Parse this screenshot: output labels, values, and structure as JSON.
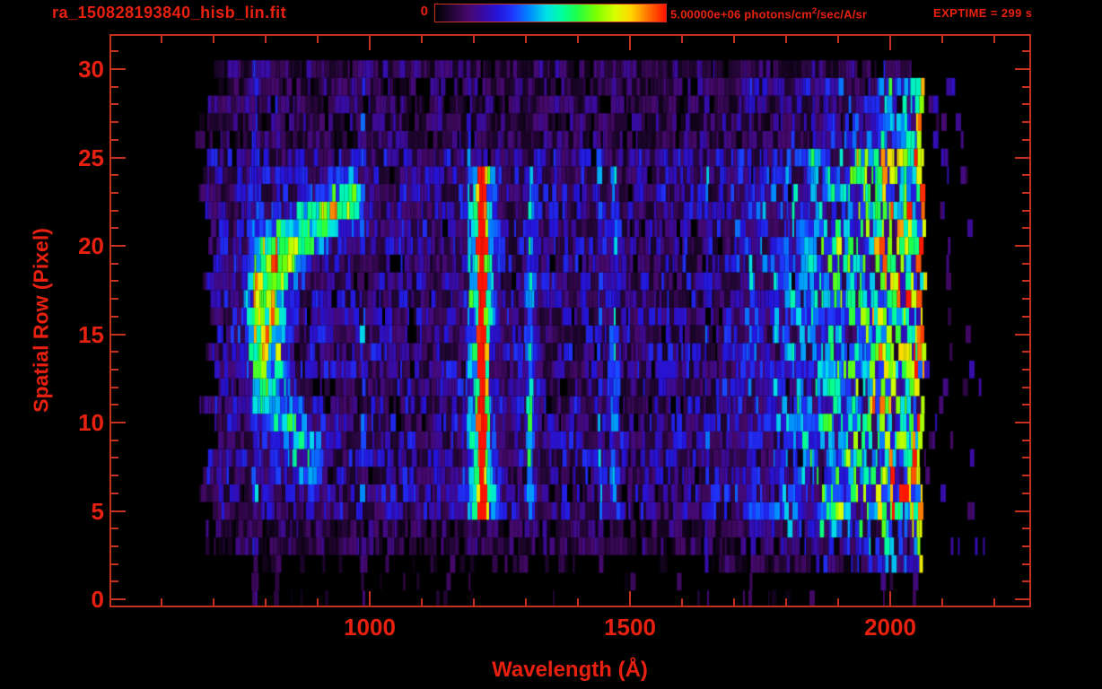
{
  "window": {
    "title_filename": "ra_150828193840_hisb_lin.fit"
  },
  "header": {
    "colorbar": {
      "min_label": "0",
      "max_value": "5.00000e+06",
      "units_prefix": " photons/cm",
      "units_sup": "2",
      "units_suffix": "/sec/A/sr"
    },
    "exptime_label": "EXPTIME = 299 s"
  },
  "colors": {
    "background": "#000000",
    "text": "#e8200f",
    "line": "#c5311d"
  },
  "chart_data": {
    "type": "heatmap",
    "title": "ra_150828193840_hisb_lin.fit",
    "xlabel": "Wavelength (Å)",
    "ylabel": "Spatial Row (Pixel)",
    "x_range_angstrom": [
      500,
      2270
    ],
    "y_range_rows": [
      -0.4,
      32
    ],
    "x_ticks": [
      1000,
      1500,
      2000
    ],
    "x_minor_tick_step": 100,
    "x_minor_tick_range": [
      600,
      2200
    ],
    "y_ticks": [
      0,
      5,
      10,
      15,
      20,
      25,
      30
    ],
    "y_minor_tick_step": 1,
    "y_minor_tick_range": [
      0,
      31
    ],
    "color_scale": {
      "min": 0,
      "max": 5000000,
      "max_label": "5.00000e+06",
      "units": "photons/cm^2/sec/A/sr"
    },
    "exposure_time_s": 299,
    "grid": false,
    "legend_position": "top-colorbar",
    "colormap_stops": [
      [
        0.0,
        "#000000"
      ],
      [
        0.07,
        "#230636"
      ],
      [
        0.14,
        "#46096b"
      ],
      [
        0.2,
        "#3a0b9e"
      ],
      [
        0.27,
        "#2414d8"
      ],
      [
        0.34,
        "#1e3cff"
      ],
      [
        0.41,
        "#008cff"
      ],
      [
        0.48,
        "#00e0e8"
      ],
      [
        0.55,
        "#00ffa0"
      ],
      [
        0.62,
        "#22ff44"
      ],
      [
        0.7,
        "#7dff00"
      ],
      [
        0.78,
        "#d8ff00"
      ],
      [
        0.85,
        "#ffd800"
      ],
      [
        0.92,
        "#ff7700"
      ],
      [
        1.0,
        "#ff1500"
      ]
    ],
    "data_extent": {
      "wavelength_min": 665,
      "wavelength_max": 2190,
      "row_min": 0,
      "row_max": 30
    },
    "features": [
      {
        "name": "target-continuum-blob",
        "type": "gauss",
        "x": 800,
        "row": 16,
        "sigma_x": 36,
        "sigma_row": 3.4,
        "amp": 0.62
      },
      {
        "name": "target-arc-upper",
        "type": "streak",
        "x1": 815,
        "row1": 19.2,
        "x2": 952,
        "row2": 22.6,
        "sigma_x": 30,
        "sigma_row": 1.7,
        "amp": 0.5
      },
      {
        "name": "target-hook-lower",
        "type": "streak",
        "x1": 803,
        "row1": 11.5,
        "x2": 888,
        "row2": 8.2,
        "sigma_x": 26,
        "sigma_row": 2.0,
        "amp": 0.3
      },
      {
        "name": "lyman-alpha-emission-line",
        "type": "vline",
        "x": 1216,
        "sigma": 9,
        "row_min": 5,
        "row_max": 24,
        "amp": 0.95,
        "halo_sigma": 26,
        "halo_amp": 0.3
      },
      {
        "name": "emission-line-2",
        "type": "vline",
        "x": 1310,
        "sigma": 7,
        "row_min": 5,
        "row_max": 24,
        "amp": 0.26,
        "halo_sigma": 12,
        "halo_amp": 0.08
      },
      {
        "name": "emission-line-3",
        "type": "vline",
        "x": 1470,
        "sigma": 7,
        "row_min": 5,
        "row_max": 24,
        "amp": 0.13,
        "halo_sigma": 10,
        "halo_amp": 0.04
      },
      {
        "name": "longwave-airglow-band",
        "type": "ramp",
        "x1": 1760,
        "x2": 2048,
        "amp1": 0.1,
        "amp2": 0.46,
        "row_min": 2,
        "row_max": 29
      },
      {
        "name": "detector-band-edge",
        "type": "edge",
        "x": 2048,
        "jitter": 14,
        "amp": 0.85,
        "row_min": 2,
        "row_max": 29
      },
      {
        "name": "sparse-specks-beyond-edge",
        "type": "specks",
        "x1": 2060,
        "x2": 2190,
        "density": 0.07,
        "amp": 0.16,
        "row_min": 1,
        "row_max": 29
      }
    ],
    "noise": {
      "seed": 20150828,
      "x_start": 665,
      "x_start_jitter": 45,
      "row_profiles": [
        {
          "rows": [
            0,
            1
          ],
          "density": 0.05,
          "amp": 0.07
        },
        {
          "rows": [
            2,
            2
          ],
          "density": 0.3,
          "amp": 0.07
        },
        {
          "rows": [
            3,
            4
          ],
          "density": 0.85,
          "amp": 0.1
        },
        {
          "rows": [
            5,
            25
          ],
          "density": 0.96,
          "amp": 0.16
        },
        {
          "rows": [
            26,
            30
          ],
          "density": 0.9,
          "amp": 0.11
        }
      ]
    }
  }
}
